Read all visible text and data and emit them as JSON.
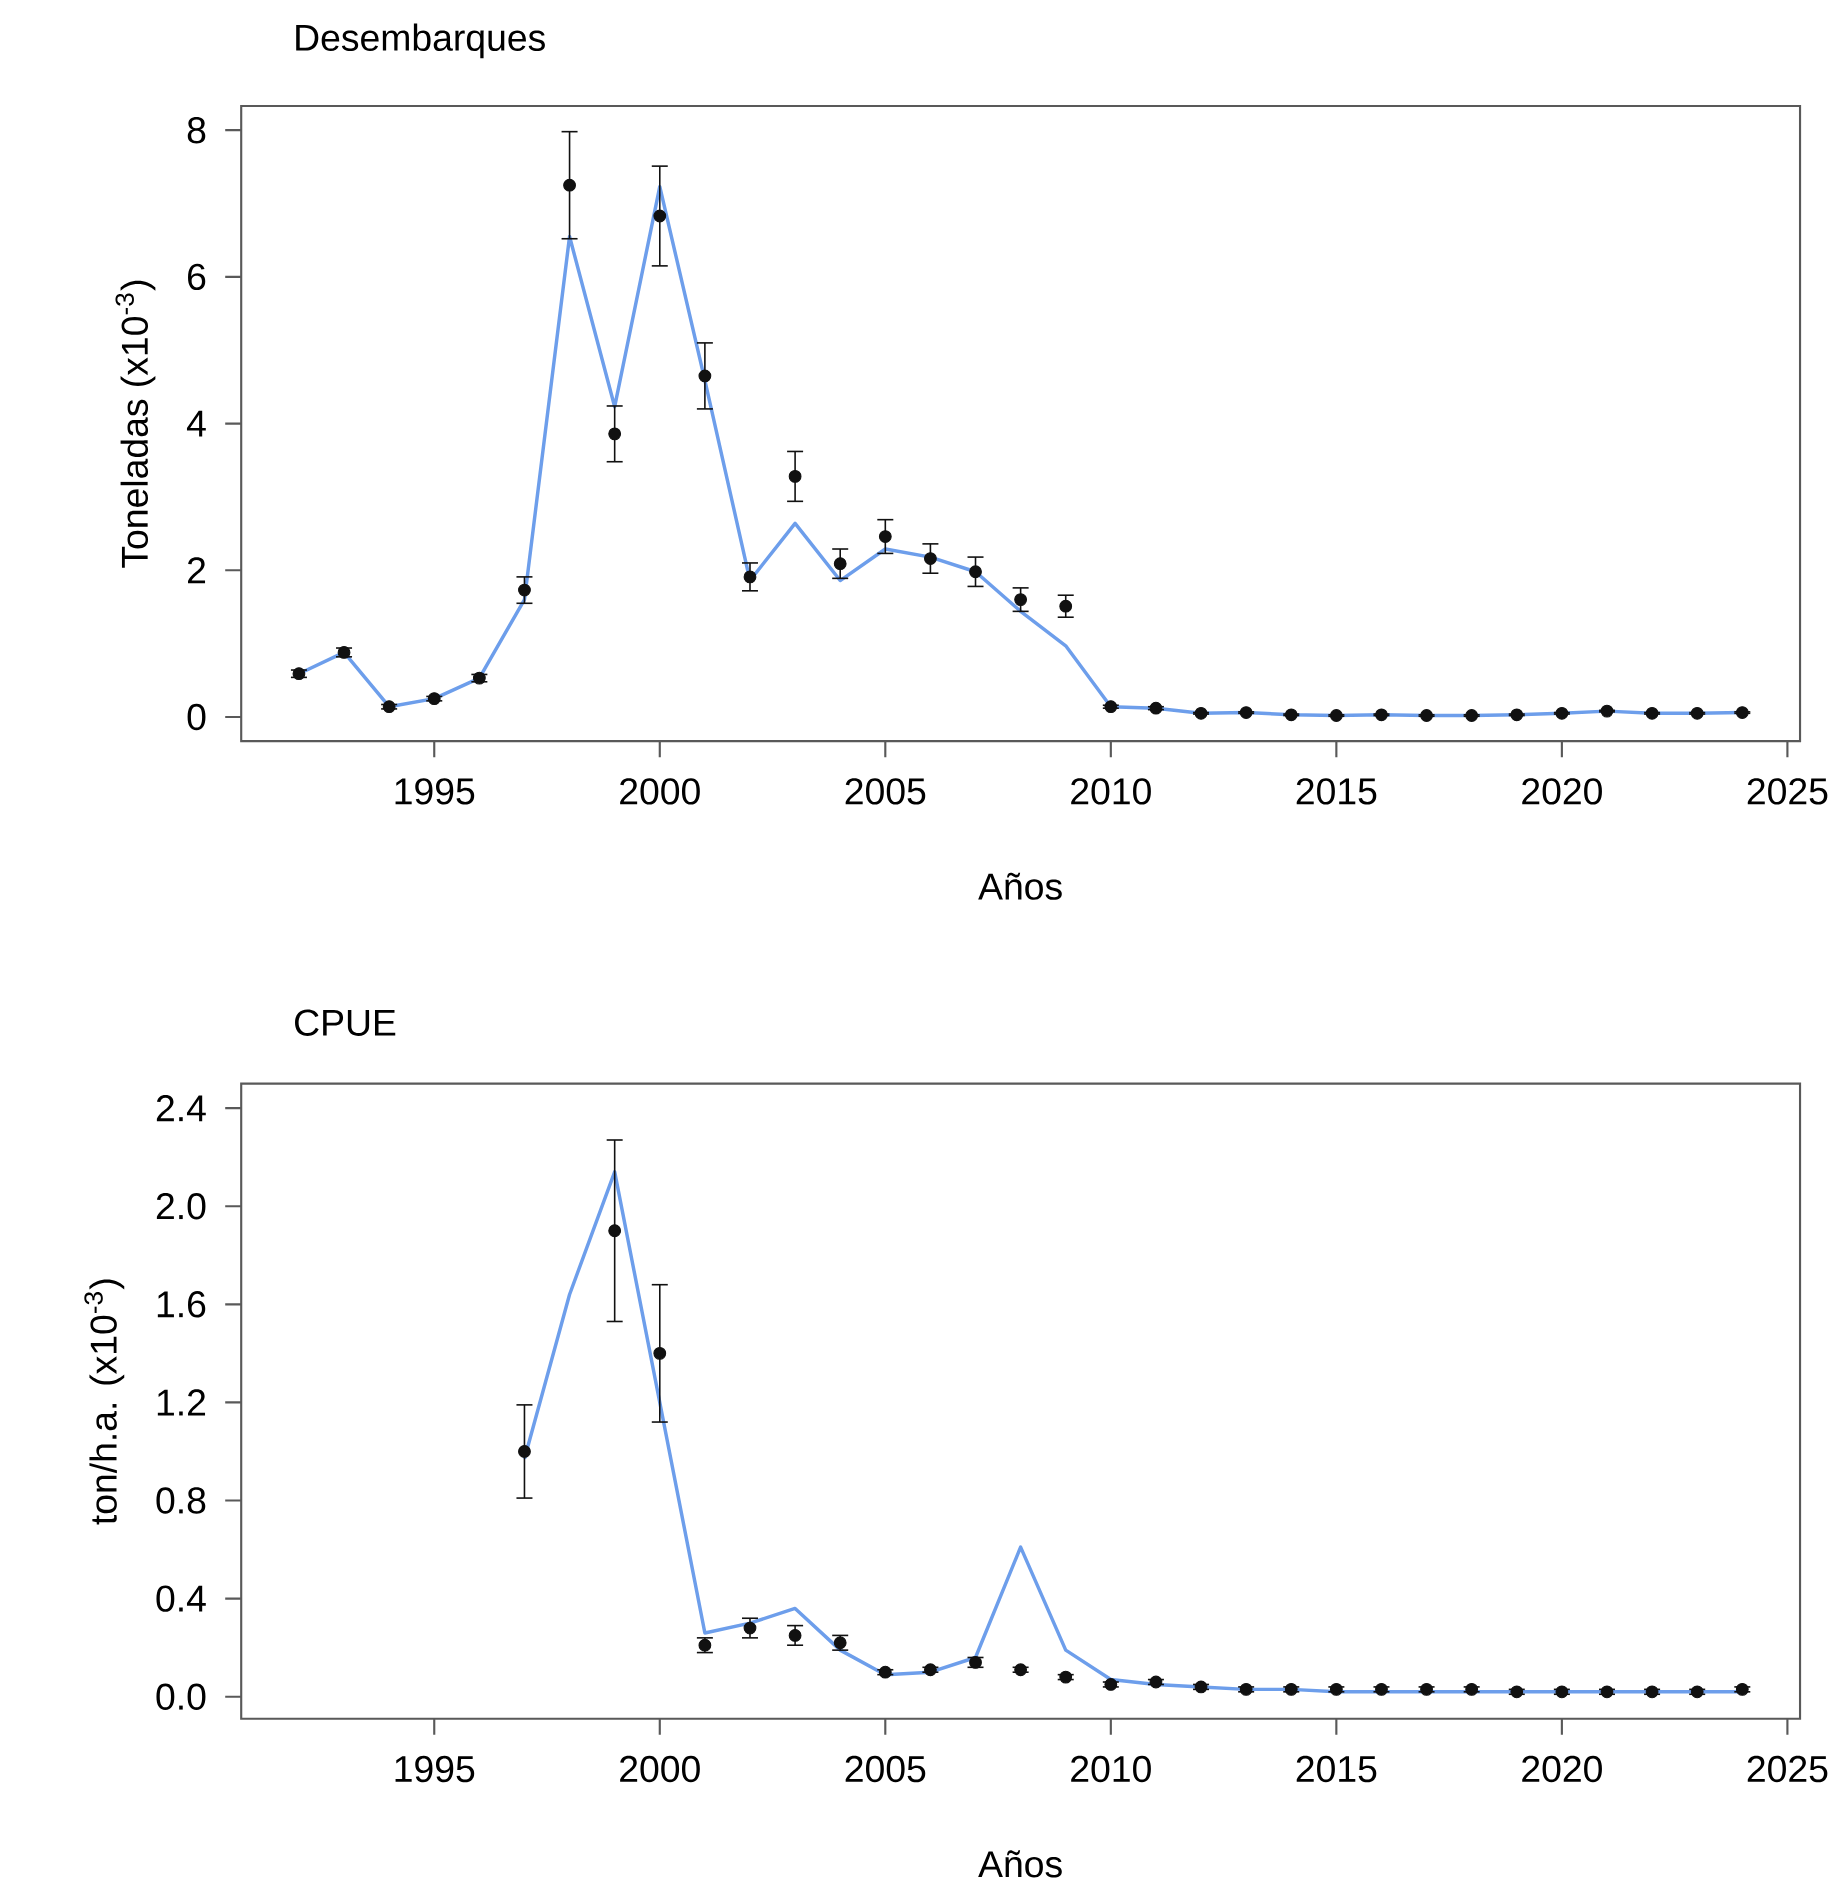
{
  "chart_data": [
    {
      "type": "line",
      "title": "Desembarques",
      "xlabel": "Años",
      "ylabel": "Toneladas (x10$^{-3}$)",
      "xlim": [
        1990.72,
        2025.28
      ],
      "ylim": [
        -0.33,
        8.33
      ],
      "xticks": [
        1995,
        2000,
        2005,
        2010,
        2015,
        2020,
        2025
      ],
      "yticks": [
        0,
        2,
        4,
        6,
        8
      ],
      "series": [
        {
          "type": "line",
          "color": "#6d9eeb",
          "x": [
            1992,
            1993,
            1994,
            1995,
            1996,
            1997,
            1998,
            1999,
            2000,
            2001,
            2002,
            2003,
            2004,
            2005,
            2006,
            2007,
            2008,
            2009,
            2010,
            2011,
            2012,
            2013,
            2014,
            2015,
            2016,
            2017,
            2018,
            2019,
            2020,
            2021,
            2022,
            2023,
            2024
          ],
          "values": [
            0.59,
            0.88,
            0.14,
            0.25,
            0.53,
            1.6,
            6.55,
            4.23,
            7.23,
            4.59,
            1.86,
            2.64,
            1.86,
            2.29,
            2.18,
            1.98,
            1.44,
            0.97,
            0.14,
            0.12,
            0.05,
            0.06,
            0.03,
            0.02,
            0.03,
            0.02,
            0.02,
            0.03,
            0.05,
            0.08,
            0.05,
            0.05,
            0.06
          ]
        },
        {
          "type": "scatter",
          "color": "#111111",
          "marker": "circle",
          "x": [
            1992,
            1993,
            1994,
            1995,
            1996,
            1997,
            1998,
            1999,
            2000,
            2001,
            2002,
            2003,
            2004,
            2005,
            2006,
            2007,
            2008,
            2009,
            2010,
            2011,
            2012,
            2013,
            2014,
            2015,
            2016,
            2017,
            2018,
            2019,
            2020,
            2021,
            2022,
            2023,
            2024
          ],
          "values": [
            0.59,
            0.88,
            0.14,
            0.25,
            0.53,
            1.73,
            7.25,
            3.86,
            6.83,
            4.65,
            1.91,
            3.28,
            2.09,
            2.46,
            2.16,
            1.98,
            1.6,
            1.51,
            0.14,
            0.12,
            0.05,
            0.06,
            0.03,
            0.02,
            0.03,
            0.02,
            0.02,
            0.03,
            0.05,
            0.08,
            0.05,
            0.05,
            0.06
          ],
          "errors": [
            0.05,
            0.06,
            0.03,
            0.03,
            0.05,
            0.18,
            0.73,
            0.38,
            0.68,
            0.45,
            0.19,
            0.34,
            0.2,
            0.23,
            0.2,
            0.2,
            0.16,
            0.15,
            0.02,
            0.02,
            0.01,
            0.01,
            0.01,
            0.01,
            0.01,
            0.01,
            0.01,
            0.01,
            0.01,
            0.01,
            0.01,
            0.01,
            0.01
          ]
        }
      ]
    },
    {
      "type": "line",
      "title": "CPUE",
      "xlabel": "Años",
      "ylabel": "ton/h.a. (x10$^{-3}$)",
      "xlim": [
        1990.72,
        2025.28
      ],
      "ylim": [
        -0.09,
        2.5
      ],
      "xticks": [
        1995,
        2000,
        2005,
        2010,
        2015,
        2020,
        2025
      ],
      "yticks": [
        {
          "value": 0,
          "label": "0.0"
        },
        {
          "value": 0.4,
          "label": "0.4"
        },
        {
          "value": 0.8,
          "label": "0.8"
        },
        {
          "value": 1.2,
          "label": "1.2"
        },
        {
          "value": 1.6,
          "label": "1.6"
        },
        {
          "value": 2.0,
          "label": "2.0"
        },
        {
          "value": 2.4,
          "label": "2.4"
        }
      ],
      "series": [
        {
          "type": "line",
          "color": "#6d9eeb",
          "x": [
            1997,
            1998,
            1999,
            2000,
            2001,
            2002,
            2003,
            2004,
            2005,
            2006,
            2007,
            2008,
            2009,
            2010,
            2011,
            2012,
            2013,
            2014,
            2015,
            2016,
            2017,
            2018,
            2019,
            2020,
            2021,
            2022,
            2023,
            2024
          ],
          "values": [
            0.97,
            1.64,
            2.14,
            1.2,
            0.26,
            0.3,
            0.36,
            0.19,
            0.09,
            0.1,
            0.16,
            0.61,
            0.19,
            0.07,
            0.05,
            0.04,
            0.03,
            0.03,
            0.02,
            0.02,
            0.02,
            0.02,
            0.02,
            0.02,
            0.02,
            0.02,
            0.02,
            0.02
          ]
        },
        {
          "type": "scatter",
          "color": "#111111",
          "marker": "circle",
          "x": [
            1997,
            1998,
            1999,
            2000,
            2001,
            2002,
            2003,
            2004,
            2005,
            2006,
            2007,
            2008,
            2009,
            2010,
            2011,
            2012,
            2013,
            2014,
            2015,
            2016,
            2017,
            2018,
            2019,
            2020,
            2021,
            2022,
            2023,
            2024
          ],
          "values": [
            1.0,
            null,
            1.9,
            1.4,
            0.21,
            0.28,
            0.25,
            0.22,
            0.1,
            0.11,
            0.14,
            0.11,
            0.08,
            0.05,
            0.06,
            0.04,
            0.03,
            0.03,
            0.03,
            0.03,
            0.03,
            0.03,
            0.02,
            0.02,
            0.02,
            0.02,
            0.02,
            0.03
          ],
          "errors": [
            0.19,
            null,
            0.37,
            0.28,
            0.03,
            0.04,
            0.04,
            0.03,
            0.01,
            0.01,
            0.02,
            0.01,
            0.01,
            0.01,
            0.01,
            0.01,
            0.01,
            0.01,
            0.01,
            0.01,
            0.01,
            0.01,
            0.01,
            0.01,
            0.01,
            0.01,
            0.01,
            0.01
          ]
        }
      ]
    }
  ]
}
